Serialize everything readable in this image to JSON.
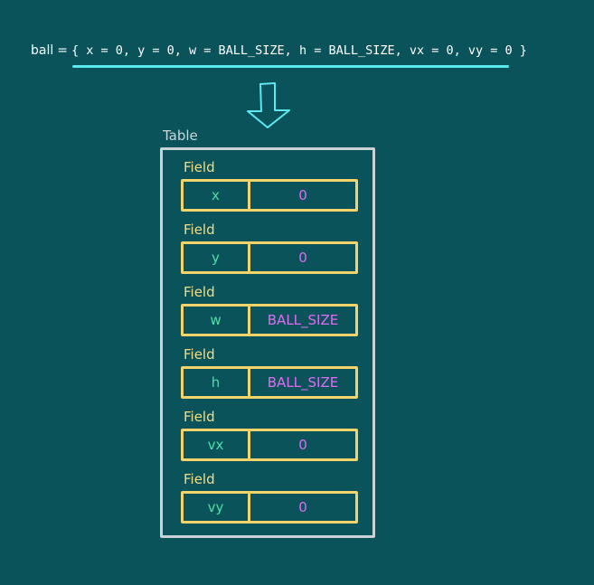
{
  "code": {
    "variable": "ball",
    "operator": "=",
    "expression": "{ x = 0, y = 0, w = BALL_SIZE, h = BALL_SIZE, vx = 0, vy = 0 }"
  },
  "table": {
    "label": "Table",
    "fields": [
      {
        "label": "Field",
        "key": "x",
        "value": "0"
      },
      {
        "label": "Field",
        "key": "y",
        "value": "0"
      },
      {
        "label": "Field",
        "key": "w",
        "value": "BALL_SIZE"
      },
      {
        "label": "Field",
        "key": "h",
        "value": "BALL_SIZE"
      },
      {
        "label": "Field",
        "key": "vx",
        "value": "0"
      },
      {
        "label": "Field",
        "key": "vy",
        "value": "0"
      }
    ]
  },
  "colors": {
    "background": "#0b535a",
    "code_text": "#ffffff",
    "underline": "#5ce8f0",
    "arrow": "#5ce8f0",
    "table_frame": "#c9d3d6",
    "field_label": "#f2de86",
    "field_border": "#f2d46b",
    "field_key": "#4fe0a5",
    "field_value": "#e06cf2"
  }
}
